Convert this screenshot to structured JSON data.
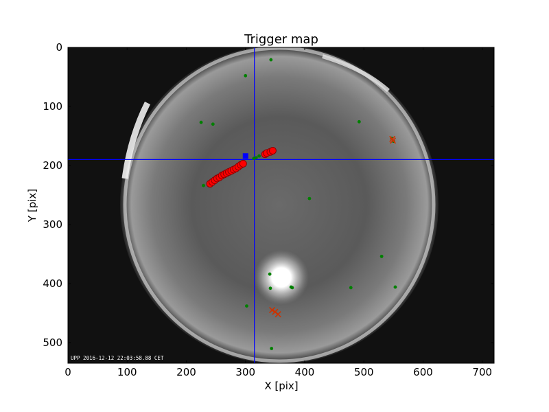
{
  "colors": {
    "trigger_line": "#0000ff",
    "event_fill": "#ff0000",
    "event_edge": "#8b0000",
    "star_color": "#008000",
    "cross_color": "#cc3300",
    "center_marker": "#0000ff"
  },
  "chart_data": {
    "type": "scatter",
    "title": "Trigger map",
    "xlabel": "X [pix]",
    "ylabel": "Y [pix]",
    "xlim": [
      0,
      720
    ],
    "ylim": [
      535,
      0
    ],
    "grid": false,
    "x_ticks": [
      0,
      100,
      200,
      300,
      400,
      500,
      600,
      700
    ],
    "y_ticks": [
      0,
      100,
      200,
      300,
      400,
      500
    ],
    "image_caption": "UPP 2016-12-12 22:03:58.88 CET",
    "crosshair": {
      "x": 315,
      "y": 190
    },
    "series": [
      {
        "kind": "event_track",
        "points": [
          {
            "x": 240,
            "y": 231
          },
          {
            "x": 244,
            "y": 228
          },
          {
            "x": 248,
            "y": 225
          },
          {
            "x": 252,
            "y": 222
          },
          {
            "x": 256,
            "y": 220
          },
          {
            "x": 260,
            "y": 217
          },
          {
            "x": 264,
            "y": 215
          },
          {
            "x": 268,
            "y": 213
          },
          {
            "x": 272,
            "y": 211
          },
          {
            "x": 276,
            "y": 209
          },
          {
            "x": 280,
            "y": 207
          },
          {
            "x": 284,
            "y": 205
          },
          {
            "x": 288,
            "y": 202
          },
          {
            "x": 292,
            "y": 199
          },
          {
            "x": 296,
            "y": 197
          },
          {
            "x": 333,
            "y": 181
          },
          {
            "x": 336,
            "y": 179
          },
          {
            "x": 342,
            "y": 177
          },
          {
            "x": 346,
            "y": 175
          }
        ]
      },
      {
        "kind": "detections",
        "points": [
          {
            "x": 343,
            "y": 21
          },
          {
            "x": 300,
            "y": 48
          },
          {
            "x": 225,
            "y": 127
          },
          {
            "x": 245,
            "y": 130
          },
          {
            "x": 492,
            "y": 126
          },
          {
            "x": 547,
            "y": 154
          },
          {
            "x": 550,
            "y": 159
          },
          {
            "x": 408,
            "y": 256
          },
          {
            "x": 530,
            "y": 354
          },
          {
            "x": 341,
            "y": 384
          },
          {
            "x": 377,
            "y": 406
          },
          {
            "x": 379,
            "y": 407
          },
          {
            "x": 342,
            "y": 408
          },
          {
            "x": 478,
            "y": 407
          },
          {
            "x": 553,
            "y": 406
          },
          {
            "x": 302,
            "y": 438
          },
          {
            "x": 344,
            "y": 510
          },
          {
            "x": 318,
            "y": 187
          },
          {
            "x": 323,
            "y": 184
          },
          {
            "x": 314,
            "y": 188
          },
          {
            "x": 229,
            "y": 234
          }
        ]
      },
      {
        "kind": "crosses",
        "points": [
          {
            "x": 345,
            "y": 445
          },
          {
            "x": 350,
            "y": 448
          },
          {
            "x": 355,
            "y": 452
          },
          {
            "x": 548,
            "y": 155
          },
          {
            "x": 549,
            "y": 158
          }
        ]
      },
      {
        "kind": "reference_point",
        "points": [
          {
            "x": 300,
            "y": 184
          }
        ]
      }
    ]
  }
}
